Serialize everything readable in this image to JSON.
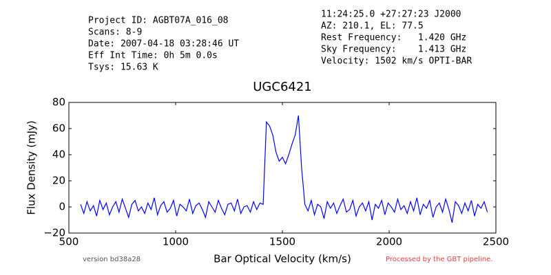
{
  "header": {
    "left": [
      "Project ID: AGBT07A_016_08",
      "Scans: 8-9",
      "Date: 2007-04-18 03:28:46 UT",
      "Eff Int Time: 0h 5m 0.0s",
      "Tsys: 15.63 K"
    ],
    "right": [
      "11:24:25.0 +27:27:23 J2000",
      "AZ: 210.1, EL: 77.5",
      "Rest Frequency:   1.420 GHz",
      "Sky Frequency:    1.413 GHz",
      "Velocity: 1502 km/s OPTI-BAR"
    ]
  },
  "footer": {
    "version": "version bd38a28",
    "pipeline": "Processed by the GBT pipeline."
  },
  "chart_data": {
    "type": "line",
    "title": "UGC6421",
    "xlabel": "Bar Optical Velocity (km/s)",
    "ylabel": "Flux Density (mJy)",
    "xlim": [
      500,
      2500
    ],
    "xticks": [
      500,
      1000,
      1500,
      2000,
      2500
    ],
    "ylim": [
      -20,
      80
    ],
    "yticks": [
      {
        "value": -20,
        "label": "−20"
      },
      0,
      20,
      40,
      60,
      80
    ],
    "x": [
      555,
      570,
      585,
      600,
      615,
      630,
      645,
      660,
      675,
      690,
      705,
      720,
      735,
      750,
      765,
      780,
      795,
      810,
      825,
      840,
      855,
      870,
      885,
      900,
      915,
      930,
      945,
      960,
      975,
      990,
      1005,
      1020,
      1035,
      1050,
      1065,
      1080,
      1095,
      1110,
      1125,
      1140,
      1155,
      1170,
      1185,
      1200,
      1215,
      1230,
      1245,
      1260,
      1275,
      1290,
      1305,
      1320,
      1335,
      1350,
      1365,
      1380,
      1395,
      1410,
      1425,
      1440,
      1455,
      1470,
      1485,
      1500,
      1515,
      1530,
      1545,
      1560,
      1575,
      1590,
      1605,
      1620,
      1635,
      1650,
      1665,
      1680,
      1695,
      1710,
      1725,
      1740,
      1755,
      1770,
      1785,
      1800,
      1815,
      1830,
      1845,
      1860,
      1875,
      1890,
      1905,
      1920,
      1935,
      1950,
      1965,
      1980,
      1995,
      2010,
      2025,
      2040,
      2055,
      2070,
      2085,
      2100,
      2115,
      2130,
      2145,
      2160,
      2175,
      2190,
      2205,
      2220,
      2235,
      2250,
      2265,
      2280,
      2295,
      2310,
      2325,
      2340,
      2355,
      2370,
      2385,
      2400,
      2415,
      2430,
      2445,
      2460
    ],
    "series": [
      {
        "name": "UGC6421",
        "color": "#0000ff",
        "values": [
          2,
          -5,
          4,
          -3,
          1,
          -7,
          5,
          -2,
          3,
          -6,
          0,
          4,
          -4,
          6,
          -1,
          -8,
          2,
          5,
          -3,
          0,
          -5,
          3,
          -2,
          7,
          -6,
          1,
          4,
          -4,
          -1,
          5,
          -7,
          2,
          0,
          -3,
          6,
          -5,
          1,
          3,
          -2,
          -8,
          4,
          0,
          -4,
          5,
          -1,
          -6,
          2,
          3,
          -3,
          6,
          -5,
          0,
          1,
          -4,
          4,
          -2,
          3,
          2,
          65,
          62,
          55,
          42,
          35,
          38,
          33,
          40,
          48,
          55,
          70,
          30,
          2,
          -3,
          5,
          -6,
          2,
          0,
          -9,
          4,
          -1,
          3,
          -5,
          1,
          6,
          -4,
          -2,
          5,
          -7,
          0,
          3,
          -3,
          4,
          -10,
          2,
          -1,
          5,
          -6,
          3,
          0,
          -4,
          6,
          -2,
          1,
          -5,
          4,
          -3,
          7,
          -6,
          2,
          -1,
          5,
          -8,
          0,
          3,
          -4,
          6,
          -2,
          -12,
          4,
          1,
          -5,
          3,
          -3,
          5,
          -7,
          2,
          -1,
          4,
          -4
        ]
      }
    ]
  }
}
